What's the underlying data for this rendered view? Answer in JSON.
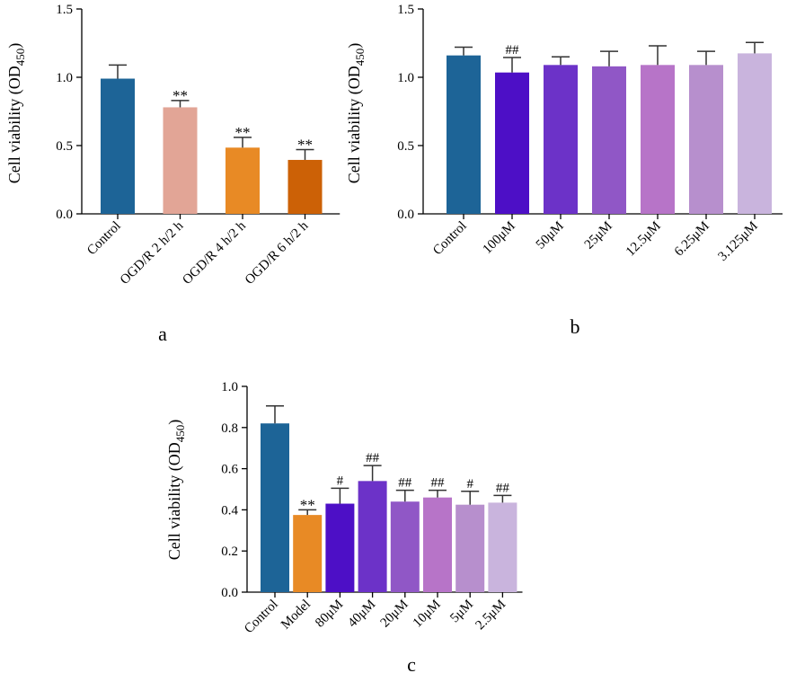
{
  "chart_data": [
    {
      "type": "bar",
      "panel_label": "a",
      "ylabel": "Cell  viability (OD",
      "ylabel_sub": "450",
      "ylabel_close": ")",
      "ylim": [
        0,
        1.5
      ],
      "yticks": [
        "0.0",
        "0.5",
        "1.0",
        "1.5"
      ],
      "categories": [
        "Control",
        "OGD/R 2 h/2 h",
        "OGD/R 4 h/2 h",
        "OGD/R 6 h/2 h"
      ],
      "values": [
        0.99,
        0.78,
        0.485,
        0.395
      ],
      "errors": [
        0.1,
        0.05,
        0.075,
        0.075
      ],
      "annotations": [
        "",
        "**",
        "**",
        "**"
      ],
      "colors": [
        "#1d6497",
        "#e2a596",
        "#e88a25",
        "#cc6106"
      ]
    },
    {
      "type": "bar",
      "panel_label": "b",
      "ylabel": "Cell  viability (OD",
      "ylabel_sub": "450",
      "ylabel_close": ")",
      "ylim": [
        0,
        1.5
      ],
      "yticks": [
        "0.0",
        "0.5",
        "1.0",
        "1.5"
      ],
      "categories": [
        "Control",
        "100μM",
        "50μM",
        "25μM",
        "12.5μM",
        "6.25μM",
        "3.125μM"
      ],
      "values": [
        1.16,
        1.035,
        1.09,
        1.08,
        1.09,
        1.09,
        1.175
      ],
      "errors": [
        0.06,
        0.11,
        0.06,
        0.11,
        0.14,
        0.1,
        0.08
      ],
      "annotations": [
        "",
        "##",
        "",
        "",
        "",
        "",
        ""
      ],
      "colors": [
        "#1d6497",
        "#4d0fc6",
        "#6c32c8",
        "#9057c6",
        "#b774c8",
        "#b78fcd",
        "#c9b4dd"
      ]
    },
    {
      "type": "bar",
      "panel_label": "c",
      "ylabel": "Cell  viability (OD",
      "ylabel_sub": "450",
      "ylabel_close": ")",
      "ylim": [
        0,
        1.0
      ],
      "yticks": [
        "0.0",
        "0.2",
        "0.4",
        "0.6",
        "0.8",
        "1.0"
      ],
      "categories": [
        "Control",
        "Model",
        "80μM",
        "40μM",
        "20μM",
        "10μM",
        "5μM",
        "2.5μM"
      ],
      "values": [
        0.82,
        0.375,
        0.43,
        0.54,
        0.44,
        0.46,
        0.425,
        0.435
      ],
      "errors": [
        0.085,
        0.025,
        0.075,
        0.075,
        0.055,
        0.035,
        0.065,
        0.035
      ],
      "annotations": [
        "",
        "**",
        "#",
        "##",
        "##",
        "##",
        "#",
        "##"
      ],
      "colors": [
        "#1d6497",
        "#e88a25",
        "#4d0fc6",
        "#6c32c8",
        "#9057c6",
        "#b774c8",
        "#b78fcd",
        "#c9b4dd"
      ]
    }
  ]
}
